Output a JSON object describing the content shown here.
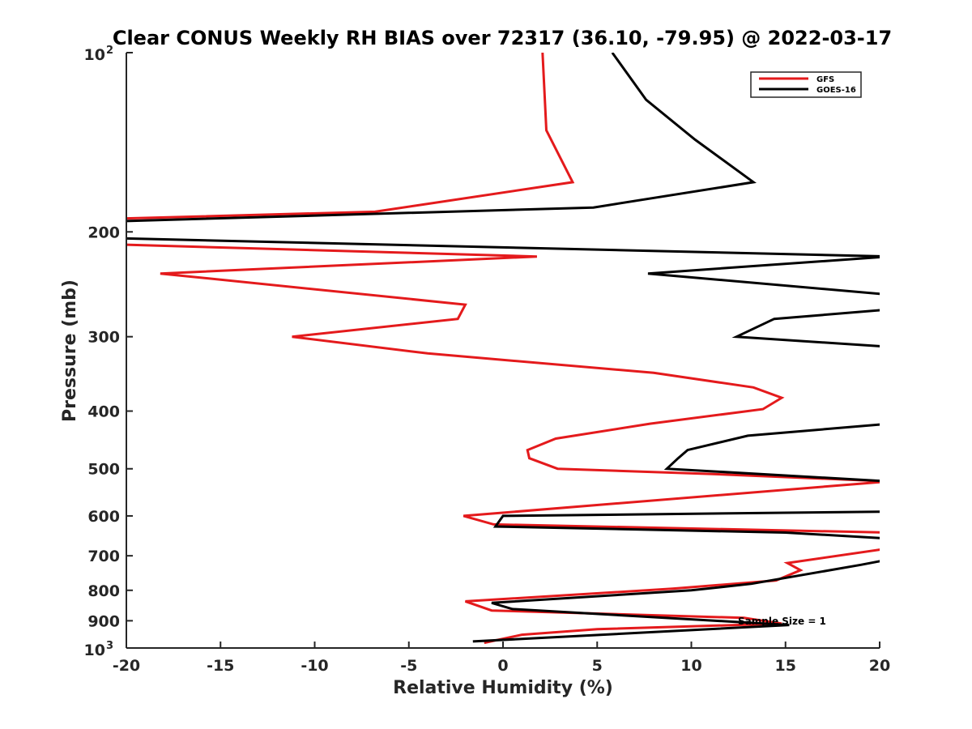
{
  "chart_data": {
    "type": "line",
    "title": "Clear CONUS Weekly RH BIAS over 72317 (36.10, -79.95) @ 2022-03-17",
    "xlabel": "Relative Humidity (%)",
    "ylabel": "Pressure (mb)",
    "xlim": [
      -20,
      20
    ],
    "ylim": [
      100,
      1000
    ],
    "yscale": "log",
    "y_reversed": true,
    "grid": false,
    "legend_position": "top-right",
    "x_ticks": [
      {
        "value": -20,
        "label": "-20"
      },
      {
        "value": -15,
        "label": "-15"
      },
      {
        "value": -10,
        "label": "-10"
      },
      {
        "value": -5,
        "label": "-5"
      },
      {
        "value": 0,
        "label": "0"
      },
      {
        "value": 5,
        "label": "5"
      },
      {
        "value": 10,
        "label": "10"
      },
      {
        "value": 15,
        "label": "15"
      },
      {
        "value": 20,
        "label": "20"
      }
    ],
    "y_ticks": [
      {
        "value": 100,
        "base": "10",
        "exp": "2"
      },
      {
        "value": 200,
        "base": "200",
        "exp": ""
      },
      {
        "value": 300,
        "base": "300",
        "exp": ""
      },
      {
        "value": 400,
        "base": "400",
        "exp": ""
      },
      {
        "value": 500,
        "base": "500",
        "exp": ""
      },
      {
        "value": 600,
        "base": "600",
        "exp": ""
      },
      {
        "value": 700,
        "base": "700",
        "exp": ""
      },
      {
        "value": 800,
        "base": "800",
        "exp": ""
      },
      {
        "value": 900,
        "base": "900",
        "exp": ""
      },
      {
        "value": 1000,
        "base": "10",
        "exp": "3"
      }
    ],
    "series": [
      {
        "name": "GFS",
        "color": "#e41a1c",
        "points": [
          [
            2.1,
            100
          ],
          [
            2.3,
            135
          ],
          [
            3.7,
            165
          ],
          [
            -6.8,
            185
          ],
          [
            -20.5,
            190
          ],
          [
            -21,
            200
          ],
          [
            -20.5,
            210
          ],
          [
            1.8,
            220
          ],
          [
            -18.2,
            235
          ],
          [
            -2.0,
            265
          ],
          [
            -2.4,
            280
          ],
          [
            -11.2,
            300
          ],
          [
            -4.0,
            320
          ],
          [
            8.0,
            345
          ],
          [
            13.3,
            365
          ],
          [
            14.8,
            380
          ],
          [
            13.8,
            397
          ],
          [
            7.8,
            420
          ],
          [
            2.8,
            445
          ],
          [
            1.3,
            465
          ],
          [
            1.4,
            480
          ],
          [
            2.9,
            500
          ],
          [
            11.0,
            510
          ],
          [
            20.5,
            525
          ],
          [
            -2.1,
            600
          ],
          [
            -0.5,
            620
          ],
          [
            20.5,
            640
          ],
          [
            20.5,
            680
          ],
          [
            15.1,
            720
          ],
          [
            15.8,
            740
          ],
          [
            14.5,
            770
          ],
          [
            9.0,
            795
          ],
          [
            -2.0,
            835
          ],
          [
            -0.6,
            865
          ],
          [
            12.8,
            890
          ],
          [
            14.8,
            910
          ],
          [
            5.0,
            930
          ],
          [
            1.0,
            950
          ],
          [
            -1.0,
            980
          ]
        ]
      },
      {
        "name": "GOES-16",
        "color": "#000000",
        "points": [
          [
            5.8,
            100
          ],
          [
            7.6,
            120
          ],
          [
            10.2,
            140
          ],
          [
            13.3,
            165
          ],
          [
            4.8,
            182
          ],
          [
            -20.5,
            192
          ],
          [
            -21,
            200
          ],
          [
            -20.5,
            205
          ],
          [
            20.5,
            220
          ],
          [
            7.7,
            235
          ],
          [
            20.5,
            255
          ],
          [
            20.5,
            270
          ],
          [
            14.4,
            280
          ],
          [
            12.4,
            300
          ],
          [
            20.5,
            312
          ],
          [
            20.5,
            420
          ],
          [
            13.0,
            440
          ],
          [
            9.8,
            465
          ],
          [
            9.3,
            480
          ],
          [
            8.7,
            500
          ],
          [
            20.5,
            525
          ],
          [
            20.5,
            590
          ],
          [
            0.0,
            600
          ],
          [
            -0.4,
            625
          ],
          [
            15.0,
            640
          ],
          [
            20.5,
            655
          ],
          [
            20.5,
            710
          ],
          [
            19.0,
            725
          ],
          [
            13.2,
            780
          ],
          [
            10.0,
            800
          ],
          [
            -0.6,
            840
          ],
          [
            0.5,
            860
          ],
          [
            15.2,
            915
          ],
          [
            -1.6,
            975
          ]
        ]
      }
    ],
    "annotations": [
      {
        "text": "Sample Size = 1",
        "x": 12.6,
        "y": 900
      }
    ]
  }
}
